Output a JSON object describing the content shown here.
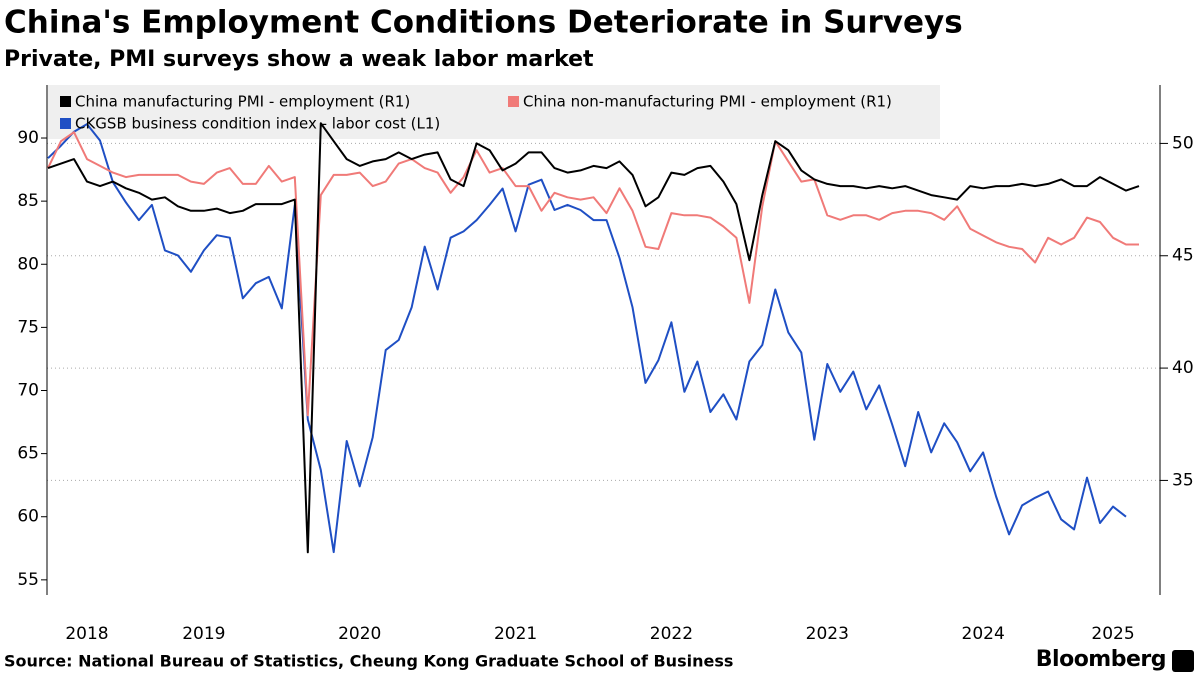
{
  "chart_data": {
    "type": "line",
    "title": "China's Employment Conditions Deteriorate in Surveys",
    "subtitle": "Private, PMI surveys show a weak labor market",
    "source": "Source: National Bureau of Statistics, Cheung Kong Graduate School of Business",
    "brand": "Bloomberg",
    "legend": "upper left",
    "grid": true,
    "categories": [
      null,
      null,
      null,
      "2018",
      null,
      null,
      null,
      null,
      null,
      null,
      null,
      null,
      "2019",
      null,
      null,
      null,
      null,
      null,
      null,
      null,
      null,
      null,
      null,
      null,
      "2020",
      null,
      null,
      null,
      null,
      null,
      null,
      null,
      null,
      null,
      null,
      null,
      "2021",
      null,
      null,
      null,
      null,
      null,
      null,
      null,
      null,
      null,
      null,
      null,
      "2022",
      null,
      null,
      null,
      null,
      null,
      null,
      null,
      null,
      null,
      null,
      null,
      "2023",
      null,
      null,
      null,
      null,
      null,
      null,
      null,
      null,
      null,
      null,
      null,
      "2024",
      null,
      null,
      null,
      null,
      null,
      null,
      null,
      null,
      null,
      "2025",
      null,
      null
    ],
    "ylim": [
      53.8,
      94.2
    ],
    "yticks": [
      55,
      60,
      65,
      70,
      75,
      80,
      85,
      90
    ],
    "y2lim": [
      29.9,
      52.6
    ],
    "y2ticks": [
      35,
      40,
      45,
      50
    ],
    "series": [
      {
        "name": "China manufacturing PMI - employment (R1)",
        "color": "#000000",
        "axis": "y2",
        "values": [
          48.9,
          49.1,
          49.3,
          48.3,
          48.1,
          48.3,
          48.0,
          47.8,
          47.5,
          47.6,
          47.2,
          47.0,
          47.0,
          47.1,
          46.9,
          47.0,
          47.3,
          47.3,
          47.3,
          47.5,
          31.8,
          50.9,
          50.1,
          49.3,
          49.0,
          49.2,
          49.3,
          49.6,
          49.3,
          49.5,
          49.6,
          48.4,
          48.1,
          50.0,
          49.7,
          48.8,
          49.1,
          49.6,
          49.6,
          48.9,
          48.7,
          48.8,
          49.0,
          48.9,
          49.2,
          48.6,
          47.2,
          47.6,
          48.7,
          48.6,
          48.9,
          49.0,
          48.3,
          47.3,
          44.8,
          47.7,
          50.1,
          49.7,
          48.8,
          48.4,
          48.2,
          48.1,
          48.1,
          48.0,
          48.1,
          48.0,
          48.1,
          47.9,
          47.7,
          47.6,
          47.5,
          48.1,
          48.0,
          48.1,
          48.1,
          48.2,
          48.1,
          48.2,
          48.4,
          48.1,
          48.1,
          48.5,
          48.2,
          47.9,
          48.1
        ]
      },
      {
        "name": "China non-manufacturing PMI - employment (R1)",
        "color": "#f07a78",
        "axis": "y2",
        "values": [
          48.9,
          50.1,
          50.5,
          49.3,
          49.0,
          48.7,
          48.5,
          48.6,
          48.6,
          48.6,
          48.6,
          48.3,
          48.2,
          48.7,
          48.9,
          48.2,
          48.2,
          49.0,
          48.3,
          48.5,
          37.9,
          47.7,
          48.6,
          48.6,
          48.7,
          48.1,
          48.3,
          49.1,
          49.3,
          48.9,
          48.7,
          47.8,
          48.5,
          49.7,
          48.7,
          48.9,
          48.1,
          48.1,
          47.0,
          47.8,
          47.6,
          47.5,
          47.6,
          46.9,
          48.0,
          47.0,
          45.4,
          45.3,
          46.9,
          46.8,
          46.8,
          46.7,
          46.3,
          45.8,
          42.9,
          47.2,
          50.1,
          49.2,
          48.3,
          48.4,
          46.8,
          46.6,
          46.8,
          46.8,
          46.6,
          46.9,
          47.0,
          47.0,
          46.9,
          46.6,
          47.2,
          46.2,
          45.9,
          45.6,
          45.4,
          45.3,
          44.7,
          45.8,
          45.5,
          45.8,
          46.7,
          46.5,
          45.8,
          45.5,
          45.5
        ]
      },
      {
        "name": "CKGSB business condition index - labor cost (L1)",
        "color": "#1f4fc4",
        "axis": "y",
        "values": [
          88.4,
          89.4,
          90.5,
          91.1,
          89.8,
          86.5,
          84.9,
          83.5,
          84.7,
          81.1,
          80.7,
          79.4,
          81.1,
          82.3,
          82.1,
          77.3,
          78.5,
          79.0,
          76.5,
          84.7,
          67.7,
          63.7,
          57.2,
          66.0,
          62.4,
          66.3,
          73.2,
          74.0,
          76.6,
          81.4,
          78.0,
          82.1,
          82.6,
          83.5,
          84.7,
          86.0,
          82.6,
          86.3,
          86.7,
          84.3,
          84.7,
          84.3,
          83.5,
          83.5,
          80.5,
          76.6,
          70.6,
          72.4,
          75.4,
          69.9,
          72.3,
          68.3,
          69.7,
          67.7,
          72.3,
          73.6,
          78.0,
          74.6,
          73.0,
          66.1,
          72.1,
          69.9,
          71.5,
          68.5,
          70.4,
          67.3,
          64.0,
          68.3,
          65.1,
          67.4,
          65.9,
          63.6,
          65.1,
          61.6,
          58.6,
          60.9,
          61.5,
          62.0,
          59.8,
          59.0,
          63.1,
          59.5,
          60.8,
          60.0,
          null
        ]
      }
    ]
  }
}
